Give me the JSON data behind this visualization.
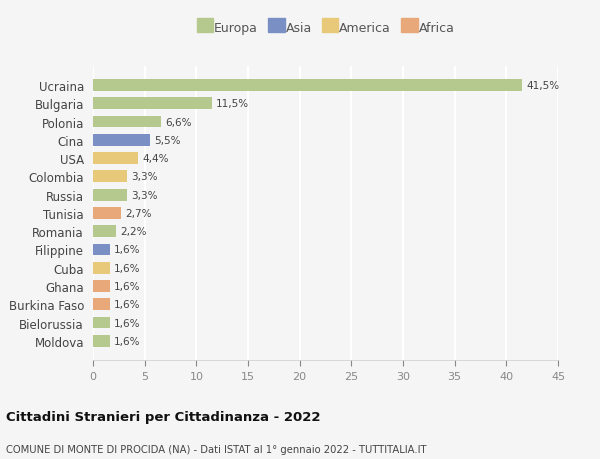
{
  "categories": [
    "Ucraina",
    "Bulgaria",
    "Polonia",
    "Cina",
    "USA",
    "Colombia",
    "Russia",
    "Tunisia",
    "Romania",
    "Filippine",
    "Cuba",
    "Ghana",
    "Burkina Faso",
    "Bielorussia",
    "Moldova"
  ],
  "values": [
    41.5,
    11.5,
    6.6,
    5.5,
    4.4,
    3.3,
    3.3,
    2.7,
    2.2,
    1.6,
    1.6,
    1.6,
    1.6,
    1.6,
    1.6
  ],
  "labels": [
    "41,5%",
    "11,5%",
    "6,6%",
    "5,5%",
    "4,4%",
    "3,3%",
    "3,3%",
    "2,7%",
    "2,2%",
    "1,6%",
    "1,6%",
    "1,6%",
    "1,6%",
    "1,6%",
    "1,6%"
  ],
  "colors": [
    "#b5c98e",
    "#b5c98e",
    "#b5c98e",
    "#7a8fc4",
    "#e8c97a",
    "#e8c97a",
    "#b5c98e",
    "#e8a87a",
    "#b5c98e",
    "#7a8fc4",
    "#e8c97a",
    "#e8a87a",
    "#e8a87a",
    "#b5c98e",
    "#b5c98e"
  ],
  "legend_labels": [
    "Europa",
    "Asia",
    "America",
    "Africa"
  ],
  "legend_colors": [
    "#b5c98e",
    "#7a8fc4",
    "#e8c97a",
    "#e8a87a"
  ],
  "xlim": [
    0,
    45
  ],
  "xticks": [
    0,
    5,
    10,
    15,
    20,
    25,
    30,
    35,
    40,
    45
  ],
  "title": "Cittadini Stranieri per Cittadinanza - 2022",
  "subtitle": "COMUNE DI MONTE DI PROCIDA (NA) - Dati ISTAT al 1° gennaio 2022 - TUTTITALIA.IT",
  "bg_color": "#f5f5f5",
  "grid_color": "#ffffff"
}
